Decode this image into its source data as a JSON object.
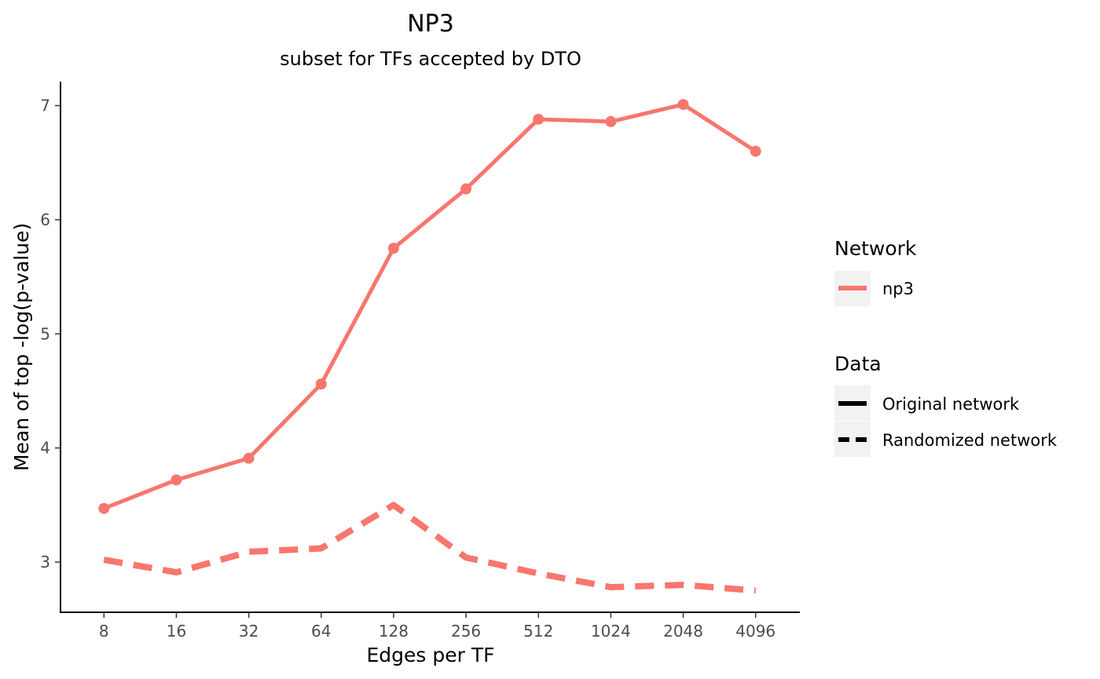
{
  "chart_data": {
    "type": "line",
    "title": "NP3",
    "subtitle": "subset for TFs accepted by DTO",
    "xlabel": "Edges per TF",
    "ylabel": "Mean of top -log(p-value)",
    "categories": [
      "8",
      "16",
      "32",
      "64",
      "128",
      "256",
      "512",
      "1024",
      "2048",
      "4096"
    ],
    "ylim": [
      2.56,
      7.21
    ],
    "yticks": [
      "3",
      "4",
      "5",
      "6",
      "7"
    ],
    "series": [
      {
        "network": "np3",
        "data": "Original network",
        "linetype": "solid",
        "points": true,
        "values": [
          3.47,
          3.72,
          3.91,
          4.56,
          5.75,
          6.27,
          6.88,
          6.86,
          7.01,
          6.6
        ]
      },
      {
        "network": "np3",
        "data": "Randomized network",
        "linetype": "dashed",
        "points": false,
        "values": [
          3.02,
          2.91,
          3.09,
          3.12,
          3.5,
          3.04,
          2.9,
          2.78,
          2.8,
          2.75
        ]
      }
    ],
    "colors": {
      "np3": "#F8766D",
      "axis": "#000000",
      "legend_key_bg": "#F2F2F2"
    },
    "grid": false,
    "legend": {
      "placement": "right",
      "groups": [
        {
          "title": "Network",
          "items": [
            {
              "label": "np3",
              "kind": "color"
            }
          ]
        },
        {
          "title": "Data",
          "items": [
            {
              "label": "Original network",
              "kind": "solid"
            },
            {
              "label": "Randomized network",
              "kind": "dashed"
            }
          ]
        }
      ]
    }
  }
}
